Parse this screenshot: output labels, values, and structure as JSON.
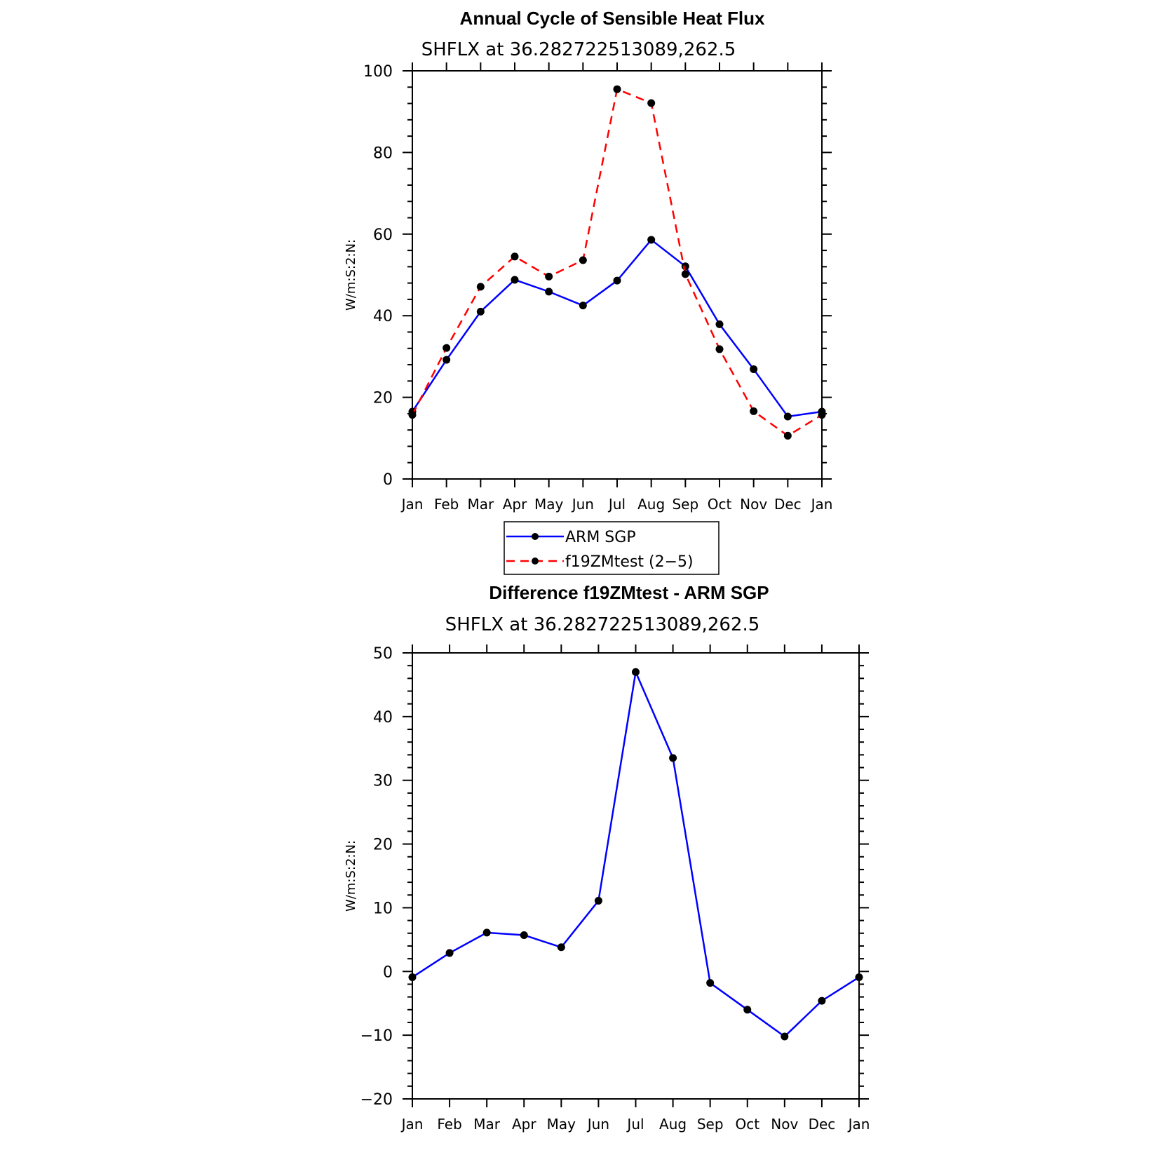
{
  "colors": {
    "arm": "#0000ff",
    "model": "#ff0000",
    "diff": "#0000ff",
    "marker": "#000000"
  },
  "legend": {
    "entries": [
      "ARM SGP",
      "f19ZMtest (2−5)"
    ]
  },
  "chart_data": [
    {
      "type": "line",
      "title": "Annual Cycle of Sensible Heat Flux",
      "subtitle": "SHFLX at 36.282722513089,262.5",
      "ylabel": "W/m:S:2:N:",
      "xlabel": "",
      "categories": [
        "Jan",
        "Feb",
        "Mar",
        "Apr",
        "May",
        "Jun",
        "Jul",
        "Aug",
        "Sep",
        "Oct",
        "Nov",
        "Dec",
        "Jan"
      ],
      "ylim": [
        0,
        100
      ],
      "yticks": [
        0,
        20,
        40,
        60,
        80,
        100
      ],
      "series": [
        {
          "name": "ARM SGP",
          "style": "solid",
          "values": [
            16.5,
            29.2,
            41.0,
            48.8,
            45.9,
            42.5,
            48.6,
            58.6,
            52.1,
            37.9,
            26.9,
            15.3,
            16.5
          ]
        },
        {
          "name": "f19ZMtest (2−5)",
          "style": "dashed",
          "values": [
            15.7,
            32.1,
            47.1,
            54.5,
            49.6,
            53.6,
            95.5,
            92.1,
            50.2,
            31.8,
            16.6,
            10.6,
            15.7
          ]
        }
      ]
    },
    {
      "type": "line",
      "title": "Difference f19ZMtest - ARM SGP",
      "subtitle": "SHFLX at 36.282722513089,262.5",
      "ylabel": "W/m:S:2:N:",
      "xlabel": "",
      "categories": [
        "Jan",
        "Feb",
        "Mar",
        "Apr",
        "May",
        "Jun",
        "Jul",
        "Aug",
        "Sep",
        "Oct",
        "Nov",
        "Dec",
        "Jan"
      ],
      "ylim": [
        -20,
        50
      ],
      "yticks": [
        -20,
        -10,
        0,
        10,
        20,
        30,
        40,
        50
      ],
      "series": [
        {
          "name": "Difference",
          "style": "solid",
          "values": [
            -0.9,
            2.9,
            6.1,
            5.7,
            3.8,
            11.1,
            47.0,
            33.5,
            -1.8,
            -6.0,
            -10.2,
            -4.6,
            -0.9
          ]
        }
      ]
    }
  ]
}
